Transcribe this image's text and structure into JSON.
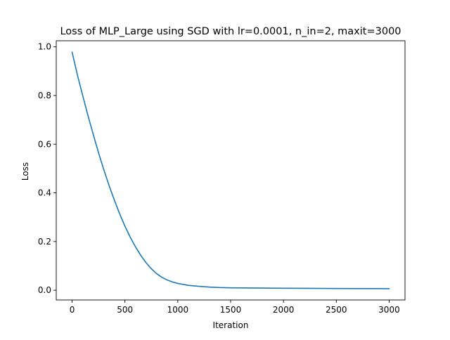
{
  "chart_data": {
    "type": "line",
    "title": "Loss of MLP_Large using SGD with lr=0.0001, n_in=2, maxit=3000",
    "xlabel": "Iteration",
    "ylabel": "Loss",
    "xlim": [
      -150,
      3150
    ],
    "ylim": [
      -0.04,
      1.025
    ],
    "xticks": [
      0,
      500,
      1000,
      1500,
      2000,
      2500,
      3000
    ],
    "xtick_labels": [
      "0",
      "500",
      "1000",
      "1500",
      "2000",
      "2500",
      "3000"
    ],
    "yticks": [
      0.0,
      0.2,
      0.4,
      0.6,
      0.8,
      1.0
    ],
    "ytick_labels": [
      "0.0",
      "0.2",
      "0.4",
      "0.6",
      "0.8",
      "1.0"
    ],
    "grid": false,
    "series": [
      {
        "color": "#1f77b4",
        "x": [
          0,
          50,
          100,
          150,
          200,
          250,
          300,
          350,
          400,
          450,
          500,
          550,
          600,
          650,
          700,
          750,
          800,
          850,
          900,
          950,
          1000,
          1100,
          1200,
          1300,
          1400,
          1500,
          1600,
          1800,
          2000,
          2200,
          2500,
          2800,
          3000
        ],
        "y": [
          0.978,
          0.885,
          0.8,
          0.718,
          0.64,
          0.565,
          0.495,
          0.43,
          0.37,
          0.314,
          0.263,
          0.218,
          0.178,
          0.143,
          0.113,
          0.088,
          0.068,
          0.053,
          0.042,
          0.034,
          0.028,
          0.02,
          0.016,
          0.013,
          0.011,
          0.01,
          0.0095,
          0.0088,
          0.0082,
          0.0077,
          0.0071,
          0.0066,
          0.0063
        ]
      }
    ]
  }
}
